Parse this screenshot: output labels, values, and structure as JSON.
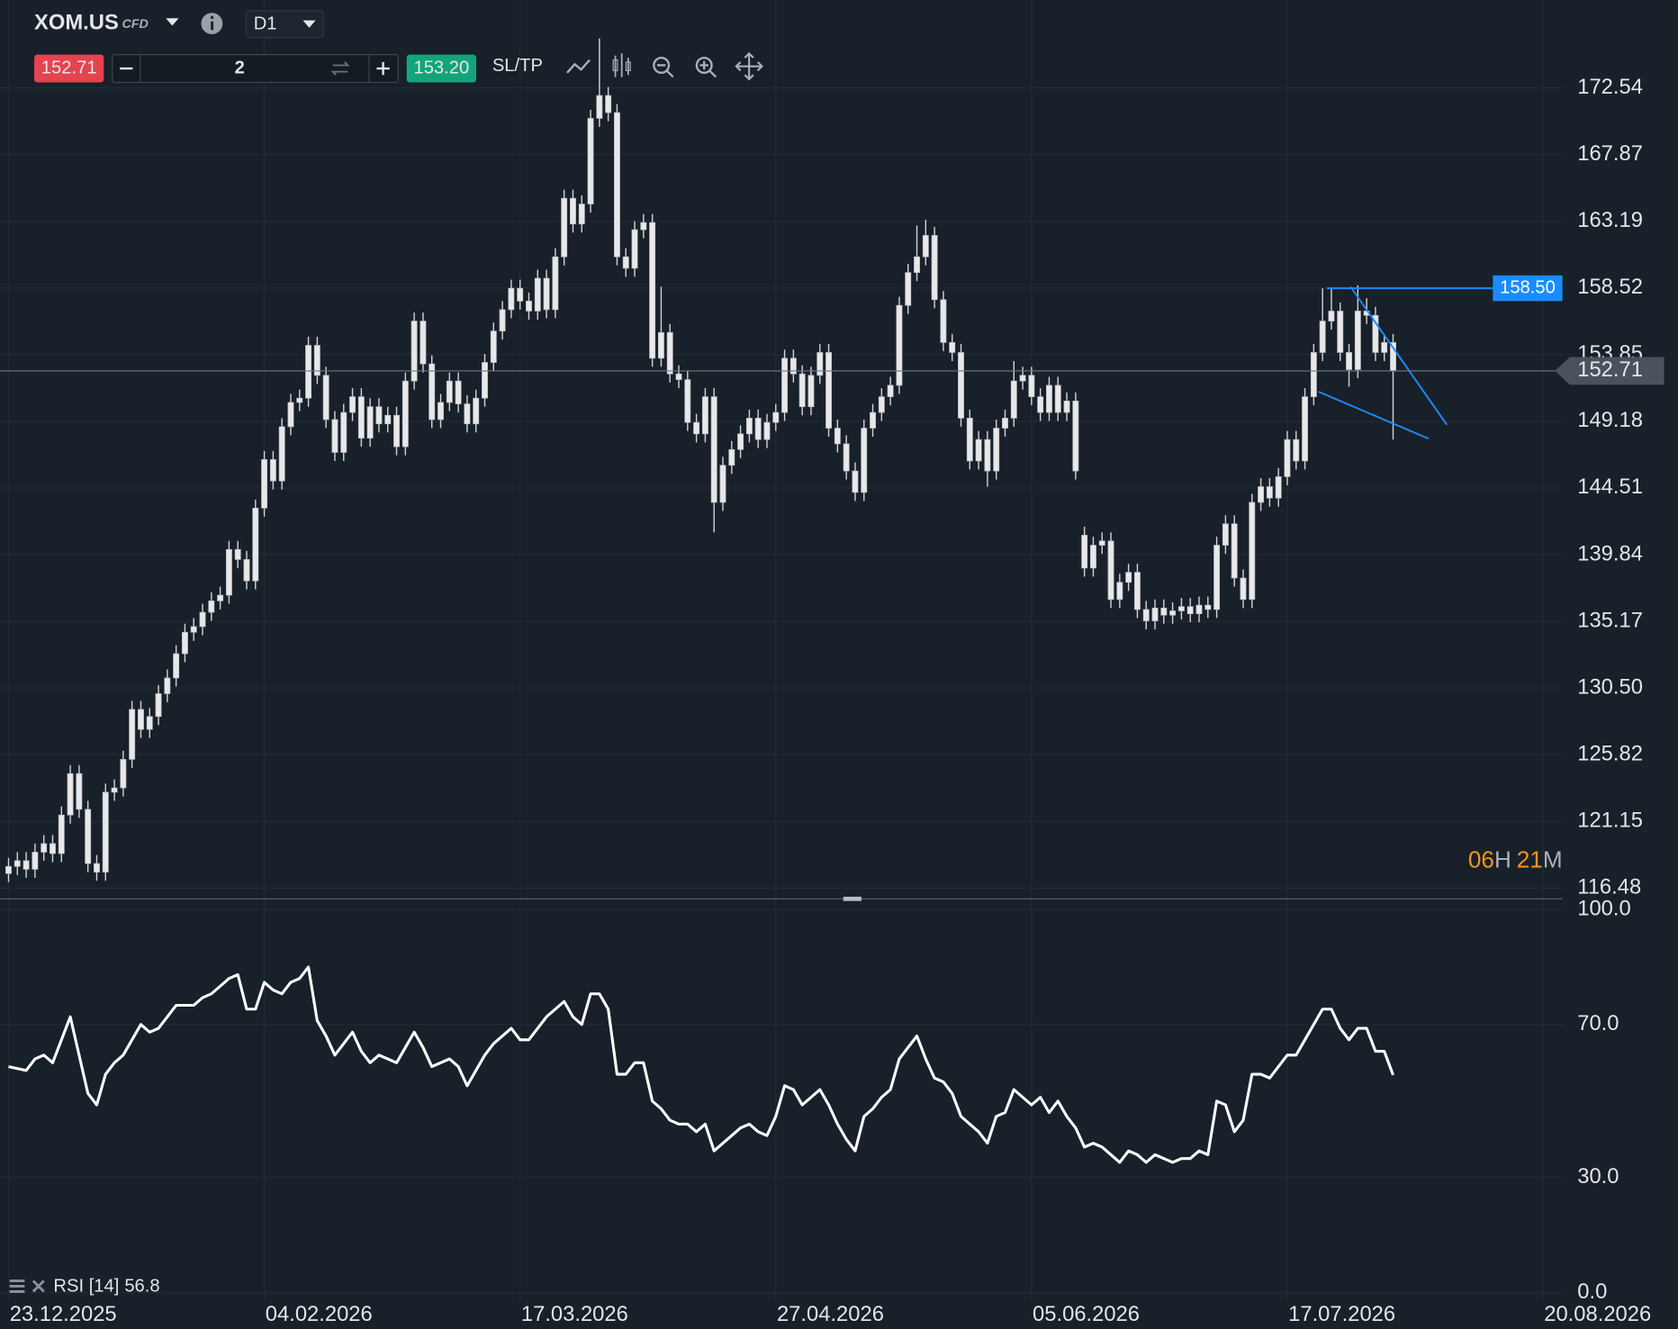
{
  "toolbar": {
    "symbol": "XOM.US",
    "instrument_type": "CFD",
    "timeframe": "D1",
    "sell_price": "152.71",
    "volume": "2",
    "buy_price": "153.20",
    "sl_tp": "SL/TP"
  },
  "chart_data": [
    {
      "type": "candlestick",
      "color": "#e8e8e8",
      "xlim": [
        -0.97,
        176.2
      ],
      "xticks": [
        {
          "value": 0,
          "label": "23.12.2025"
        },
        {
          "value": 29,
          "label": "04.02.2026"
        },
        {
          "value": 58,
          "label": "17.03.2026"
        },
        {
          "value": 87,
          "label": "27.04.2026"
        },
        {
          "value": 116,
          "label": "05.06.2026"
        },
        {
          "value": 145,
          "label": "17.07.2026"
        },
        {
          "value": 174,
          "label": "20.08.2026"
        }
      ],
      "ylim": [
        115.73,
        178.69
      ],
      "yticks": [
        172.54,
        167.87,
        163.19,
        158.52,
        153.85,
        149.18,
        144.51,
        139.84,
        135.17,
        {
          "value": 130.5,
          "label": "130.50"
        },
        125.82,
        121.15,
        116.48
      ],
      "grid": true,
      "current_price": {
        "value": 152.71,
        "label": "152.71"
      },
      "price_line": {
        "value": 158.5,
        "label": "158.50",
        "color": "#1a8cff"
      },
      "countdown": {
        "hours": "06",
        "hours_unit": "H",
        "minutes": "21",
        "minutes_unit": "M"
      },
      "candles": [
        [
          117.5,
          118.6,
          116.9,
          118.0
        ],
        [
          118.0,
          119.0,
          117.4,
          118.4
        ],
        [
          118.4,
          119.0,
          117.2,
          117.8
        ],
        [
          117.8,
          119.6,
          117.2,
          119.0
        ],
        [
          119.0,
          120.2,
          118.4,
          119.6
        ],
        [
          119.6,
          120.2,
          118.3,
          118.9
        ],
        [
          118.9,
          122.2,
          118.3,
          121.6
        ],
        [
          121.6,
          125.1,
          121.0,
          124.5
        ],
        [
          124.5,
          125.1,
          121.4,
          122.0
        ],
        [
          122.0,
          122.6,
          117.6,
          118.2
        ],
        [
          118.2,
          118.8,
          117.0,
          117.6
        ],
        [
          117.6,
          123.8,
          117.0,
          123.2
        ],
        [
          123.2,
          124.1,
          122.6,
          123.5
        ],
        [
          123.5,
          126.1,
          122.9,
          125.5
        ],
        [
          125.5,
          129.6,
          124.9,
          129.0
        ],
        [
          129.0,
          129.6,
          127.0,
          127.6
        ],
        [
          127.6,
          129.1,
          127.0,
          128.5
        ],
        [
          128.5,
          130.7,
          127.9,
          130.1
        ],
        [
          130.1,
          131.8,
          129.5,
          131.2
        ],
        [
          131.2,
          133.5,
          130.6,
          132.9
        ],
        [
          132.9,
          135.0,
          132.3,
          134.4
        ],
        [
          134.4,
          135.4,
          133.8,
          134.8
        ],
        [
          134.8,
          136.4,
          134.2,
          135.8
        ],
        [
          135.8,
          137.2,
          135.2,
          136.6
        ],
        [
          136.6,
          137.6,
          136.0,
          137.0
        ],
        [
          137.0,
          140.8,
          136.4,
          140.2
        ],
        [
          140.2,
          140.8,
          138.9,
          139.5
        ],
        [
          139.5,
          140.1,
          137.4,
          138.0
        ],
        [
          138.0,
          143.7,
          137.4,
          143.1
        ],
        [
          143.1,
          147.1,
          142.5,
          146.5
        ],
        [
          146.5,
          147.1,
          144.4,
          145.0
        ],
        [
          145.0,
          149.4,
          144.4,
          148.8
        ],
        [
          148.8,
          151.1,
          148.2,
          150.5
        ],
        [
          150.5,
          151.4,
          149.9,
          150.8
        ],
        [
          150.8,
          155.1,
          150.2,
          154.5
        ],
        [
          154.5,
          155.1,
          151.8,
          152.4
        ],
        [
          152.4,
          153.0,
          148.7,
          149.3
        ],
        [
          149.3,
          149.9,
          146.4,
          147.0
        ],
        [
          147.0,
          150.4,
          146.4,
          149.8
        ],
        [
          149.8,
          151.5,
          149.2,
          150.9
        ],
        [
          150.9,
          151.5,
          147.4,
          148.0
        ],
        [
          148.0,
          150.8,
          147.4,
          150.2
        ],
        [
          150.2,
          150.8,
          148.4,
          149.0
        ],
        [
          149.0,
          150.2,
          148.4,
          149.6
        ],
        [
          149.6,
          150.2,
          146.8,
          147.4
        ],
        [
          147.4,
          152.6,
          146.8,
          152.0
        ],
        [
          152.0,
          156.8,
          151.4,
          156.2
        ],
        [
          156.2,
          156.8,
          152.6,
          153.2
        ],
        [
          153.2,
          153.8,
          148.7,
          149.3
        ],
        [
          149.3,
          151.1,
          148.7,
          150.5
        ],
        [
          150.5,
          152.6,
          149.9,
          152.0
        ],
        [
          152.0,
          152.6,
          149.8,
          150.4
        ],
        [
          150.4,
          151.0,
          148.4,
          149.0
        ],
        [
          149.0,
          151.4,
          148.4,
          150.8
        ],
        [
          150.8,
          153.9,
          150.2,
          153.3
        ],
        [
          153.3,
          156.1,
          152.7,
          155.5
        ],
        [
          155.5,
          157.6,
          154.9,
          157.0
        ],
        [
          157.0,
          159.1,
          156.4,
          158.5
        ],
        [
          158.5,
          159.1,
          157.0,
          157.6
        ],
        [
          157.6,
          158.2,
          156.3,
          156.9
        ],
        [
          156.9,
          159.8,
          156.3,
          159.2
        ],
        [
          159.2,
          159.8,
          156.4,
          157.0
        ],
        [
          157.0,
          161.3,
          156.4,
          160.7
        ],
        [
          160.7,
          165.4,
          160.1,
          164.8
        ],
        [
          164.8,
          165.4,
          162.4,
          163.0
        ],
        [
          163.0,
          165.0,
          162.4,
          164.4
        ],
        [
          164.4,
          171.0,
          163.8,
          170.4
        ],
        [
          170.4,
          176.0,
          169.8,
          172.0
        ],
        [
          172.0,
          172.6,
          170.2,
          170.8
        ],
        [
          170.8,
          171.4,
          160.1,
          160.7
        ],
        [
          160.7,
          161.3,
          159.3,
          159.9
        ],
        [
          159.9,
          163.2,
          159.3,
          162.6
        ],
        [
          162.6,
          163.7,
          162.0,
          163.1
        ],
        [
          163.1,
          163.7,
          153.0,
          153.6
        ],
        [
          153.6,
          158.6,
          153.0,
          155.4
        ],
        [
          155.4,
          156.0,
          151.9,
          152.5
        ],
        [
          152.5,
          153.1,
          151.5,
          152.1
        ],
        [
          152.1,
          152.7,
          148.5,
          149.1
        ],
        [
          149.1,
          149.7,
          147.7,
          148.3
        ],
        [
          148.3,
          151.5,
          147.7,
          150.9
        ],
        [
          150.9,
          151.5,
          141.4,
          143.5
        ],
        [
          143.5,
          146.7,
          142.9,
          146.1
        ],
        [
          146.1,
          147.8,
          145.5,
          147.2
        ],
        [
          147.2,
          148.9,
          146.6,
          148.3
        ],
        [
          148.3,
          150.0,
          147.7,
          149.4
        ],
        [
          149.4,
          150.0,
          147.3,
          147.9
        ],
        [
          147.9,
          149.7,
          147.3,
          149.1
        ],
        [
          149.1,
          150.4,
          148.5,
          149.8
        ],
        [
          149.8,
          154.2,
          149.2,
          153.6
        ],
        [
          153.6,
          154.2,
          151.9,
          152.5
        ],
        [
          152.5,
          153.1,
          149.6,
          150.2
        ],
        [
          150.2,
          153.0,
          149.6,
          152.4
        ],
        [
          152.4,
          154.6,
          151.8,
          154.0
        ],
        [
          154.0,
          154.6,
          148.1,
          148.7
        ],
        [
          148.7,
          149.3,
          147.0,
          147.6
        ],
        [
          147.6,
          148.2,
          145.1,
          145.7
        ],
        [
          145.7,
          146.3,
          143.6,
          144.2
        ],
        [
          144.2,
          149.3,
          143.6,
          148.7
        ],
        [
          148.7,
          150.4,
          148.1,
          149.8
        ],
        [
          149.8,
          151.5,
          149.2,
          150.9
        ],
        [
          150.9,
          152.3,
          150.3,
          151.7
        ],
        [
          151.7,
          157.9,
          151.1,
          157.3
        ],
        [
          157.3,
          160.2,
          156.7,
          159.6
        ],
        [
          159.6,
          162.9,
          159.0,
          160.7
        ],
        [
          160.7,
          163.3,
          160.1,
          162.2
        ],
        [
          162.2,
          162.8,
          157.1,
          157.7
        ],
        [
          157.7,
          158.3,
          154.1,
          154.7
        ],
        [
          154.7,
          155.3,
          153.4,
          154.0
        ],
        [
          154.0,
          154.6,
          148.8,
          149.4
        ],
        [
          149.4,
          150.0,
          145.8,
          146.4
        ],
        [
          146.4,
          148.5,
          145.8,
          147.9
        ],
        [
          147.9,
          148.5,
          144.6,
          145.7
        ],
        [
          145.7,
          149.3,
          145.1,
          148.7
        ],
        [
          148.7,
          150.0,
          148.1,
          149.4
        ],
        [
          149.4,
          153.4,
          148.8,
          152.0
        ],
        [
          152.0,
          153.0,
          151.4,
          152.4
        ],
        [
          152.4,
          153.0,
          150.3,
          150.9
        ],
        [
          150.9,
          151.5,
          149.2,
          149.8
        ],
        [
          149.8,
          152.3,
          149.2,
          151.7
        ],
        [
          151.7,
          152.3,
          149.2,
          149.8
        ],
        [
          149.8,
          151.2,
          149.2,
          150.6
        ],
        [
          150.6,
          151.2,
          145.1,
          145.7
        ],
        [
          141.2,
          141.8,
          138.3,
          138.9
        ],
        [
          138.9,
          141.1,
          138.3,
          140.5
        ],
        [
          140.5,
          141.4,
          139.9,
          140.8
        ],
        [
          140.8,
          141.4,
          136.1,
          136.7
        ],
        [
          136.7,
          138.5,
          136.1,
          137.9
        ],
        [
          137.9,
          139.2,
          137.3,
          138.6
        ],
        [
          138.6,
          139.2,
          135.4,
          136.0
        ],
        [
          136.0,
          136.6,
          134.6,
          135.2
        ],
        [
          135.2,
          136.7,
          134.6,
          136.1
        ],
        [
          136.1,
          136.7,
          135.0,
          135.6
        ],
        [
          135.6,
          136.5,
          135.0,
          135.9
        ],
        [
          135.9,
          136.8,
          135.3,
          136.2
        ],
        [
          136.2,
          136.8,
          135.1,
          135.7
        ],
        [
          135.7,
          136.9,
          135.1,
          136.3
        ],
        [
          136.3,
          136.9,
          135.4,
          136.0
        ],
        [
          136.0,
          141.1,
          135.4,
          140.5
        ],
        [
          140.5,
          142.6,
          139.9,
          142.0
        ],
        [
          142.0,
          142.6,
          137.6,
          138.2
        ],
        [
          138.2,
          138.8,
          136.1,
          136.7
        ],
        [
          136.7,
          144.1,
          136.1,
          143.5
        ],
        [
          143.5,
          145.2,
          142.9,
          144.6
        ],
        [
          144.6,
          145.2,
          143.2,
          143.8
        ],
        [
          143.8,
          145.9,
          143.2,
          145.3
        ],
        [
          145.3,
          148.5,
          144.7,
          147.9
        ],
        [
          147.9,
          148.5,
          145.8,
          146.4
        ],
        [
          146.4,
          151.5,
          145.8,
          150.9
        ],
        [
          150.9,
          154.6,
          150.3,
          154.0
        ],
        [
          154.0,
          158.5,
          153.4,
          156.2
        ],
        [
          156.2,
          158.5,
          155.6,
          156.9
        ],
        [
          156.9,
          157.5,
          153.4,
          154.0
        ],
        [
          154.0,
          154.6,
          151.6,
          152.8
        ],
        [
          152.8,
          158.7,
          152.2,
          156.9
        ],
        [
          156.9,
          157.8,
          156.0,
          156.6
        ],
        [
          156.6,
          157.2,
          153.4,
          154.0
        ],
        [
          154.0,
          155.3,
          153.4,
          154.7
        ],
        [
          154.7,
          155.3,
          147.9,
          152.71
        ]
      ]
    },
    {
      "type": "line",
      "xlim": [
        -0.97,
        176.2
      ],
      "ylim": [
        0,
        100
      ],
      "yticks": [
        {
          "value": 100,
          "label": "100.0"
        },
        {
          "value": 70,
          "label": "70.0"
        },
        {
          "value": 30,
          "label": "30.0"
        },
        {
          "value": 0,
          "label": "0.0"
        }
      ],
      "grid": true,
      "series": [
        {
          "name": "RSI [14]",
          "color": "#ffffff",
          "values": [
            59,
            58.5,
            58,
            61,
            62,
            60,
            66,
            72,
            62,
            52,
            49,
            57,
            60,
            62,
            66,
            70,
            68,
            69,
            72,
            75,
            75,
            75,
            77,
            78,
            80,
            82,
            83,
            74,
            74,
            81,
            79,
            78,
            81,
            82,
            85,
            71,
            67,
            62,
            65,
            68,
            63,
            60,
            62,
            61,
            60,
            64,
            68,
            64,
            59,
            60,
            61,
            59,
            54,
            58,
            62,
            65,
            67,
            69,
            66,
            66,
            69,
            72,
            74,
            76,
            72,
            70,
            78,
            78,
            74,
            57,
            57,
            60,
            60,
            50,
            48,
            45,
            44,
            44,
            42,
            44,
            37,
            39,
            41,
            43,
            44,
            42,
            41,
            46,
            54,
            53,
            49,
            51,
            53,
            49,
            44,
            40,
            37,
            46,
            48,
            51,
            53,
            61,
            64,
            67,
            61,
            56,
            55,
            52,
            46,
            44,
            42,
            39,
            46,
            47,
            53,
            51,
            49,
            51,
            47,
            50,
            46,
            43,
            38,
            39,
            38,
            36,
            34,
            37,
            36,
            34,
            36,
            35,
            34,
            35,
            35,
            37,
            36,
            50,
            49,
            42,
            45,
            57,
            57,
            56,
            59,
            62,
            62,
            66,
            70,
            74,
            74,
            69,
            66,
            69,
            69,
            63,
            63,
            56.8
          ]
        }
      ]
    }
  ]
}
